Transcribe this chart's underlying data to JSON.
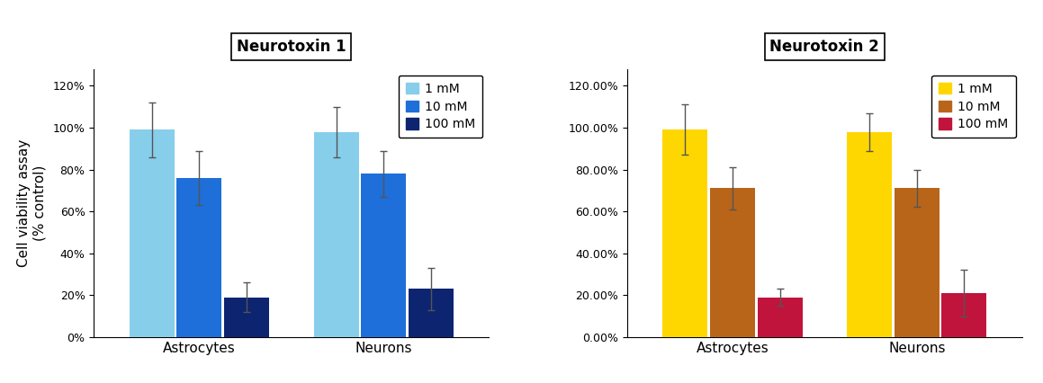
{
  "chart1": {
    "title": "Neurotoxin 1",
    "categories": [
      "Astrocytes",
      "Neurons"
    ],
    "values": {
      "1mM": [
        0.99,
        0.98
      ],
      "10mM": [
        0.76,
        0.78
      ],
      "100mM": [
        0.19,
        0.23
      ]
    },
    "errors": {
      "1mM": [
        0.13,
        0.12
      ],
      "10mM": [
        0.13,
        0.11
      ],
      "100mM": [
        0.07,
        0.1
      ]
    },
    "colors": {
      "1mM": "#87CEEB",
      "10mM": "#1E6FD9",
      "100mM": "#0D2470"
    },
    "ylabel": "Cell viability assay\n(% control)",
    "ylim": [
      0,
      1.28
    ],
    "yticks": [
      0,
      0.2,
      0.4,
      0.6,
      0.8,
      1.0,
      1.2
    ],
    "yticklabels": [
      "0%",
      "20%",
      "40%",
      "60%",
      "80%",
      "100%",
      "120%"
    ],
    "legend_labels": [
      "1 mM",
      "10 mM",
      "100 mM"
    ]
  },
  "chart2": {
    "title": "Neurotoxin 2",
    "categories": [
      "Astrocytes",
      "Neurons"
    ],
    "values": {
      "1mM": [
        0.99,
        0.98
      ],
      "10mM": [
        0.71,
        0.71
      ],
      "100mM": [
        0.19,
        0.21
      ]
    },
    "errors": {
      "1mM": [
        0.12,
        0.09
      ],
      "10mM": [
        0.1,
        0.09
      ],
      "100mM": [
        0.04,
        0.11
      ]
    },
    "colors": {
      "1mM": "#FFD700",
      "10mM": "#B8651A",
      "100mM": "#C0143C"
    },
    "ylabel": "",
    "ylim": [
      0,
      1.28
    ],
    "yticks": [
      0,
      0.2,
      0.4,
      0.6,
      0.8,
      1.0,
      1.2
    ],
    "yticklabels": [
      "0.00%",
      "20.00%",
      "40.00%",
      "60.00%",
      "80.00%",
      "100.00%",
      "120.00%"
    ],
    "legend_labels": [
      "1 mM",
      "10 mM",
      "100 mM"
    ]
  },
  "bar_width": 0.18,
  "background_color": "#ffffff",
  "title_fontsize": 12,
  "tick_fontsize": 9,
  "label_fontsize": 10,
  "legend_fontsize": 9,
  "figsize": [
    11.59,
    4.26
  ],
  "dpi": 100
}
